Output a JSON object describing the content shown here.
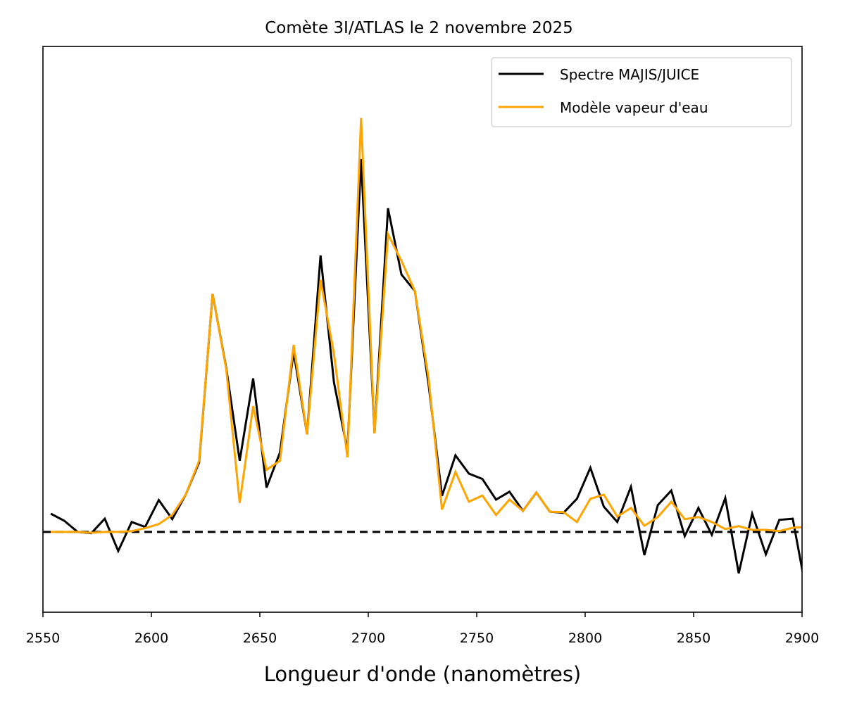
{
  "chart_data": {
    "type": "line",
    "title": "Comète 3I/ATLAS le 2 novembre 2025",
    "xlabel": "Longueur d'onde (nanomètres)",
    "ylabel": "",
    "xlim": [
      2550,
      2900
    ],
    "ylim": [
      -19.4,
      117.3
    ],
    "xticks": [
      2550,
      2600,
      2650,
      2700,
      2750,
      2800,
      2850,
      2900
    ],
    "y_ticks_shown": false,
    "grid": false,
    "legend_position": "top-right",
    "reference_line": {
      "y": 0,
      "style": "dashed",
      "color": "#000000"
    },
    "x": [
      2553.6,
      2559.8,
      2566.0,
      2572.3,
      2578.5,
      2584.7,
      2590.9,
      2597.1,
      2603.4,
      2609.6,
      2615.8,
      2622.0,
      2628.2,
      2634.5,
      2640.7,
      2646.9,
      2653.1,
      2659.3,
      2665.6,
      2671.8,
      2678.0,
      2684.2,
      2690.4,
      2696.7,
      2702.9,
      2709.1,
      2715.3,
      2721.5,
      2727.8,
      2734.0,
      2740.2,
      2746.4,
      2752.6,
      2758.9,
      2765.1,
      2771.3,
      2777.5,
      2783.7,
      2790.0,
      2796.2,
      2802.4,
      2808.6,
      2814.8,
      2821.1,
      2827.3,
      2833.5,
      2839.7,
      2845.9,
      2852.2,
      2858.4,
      2864.6,
      2870.8,
      2877.0,
      2883.3,
      2889.5,
      2895.7,
      2901.9
    ],
    "series": [
      {
        "name": "Spectre MAJIS/JUICE",
        "color": "#000000",
        "values": [
          4.4,
          2.7,
          0,
          -0.3,
          3.2,
          -4.6,
          2.4,
          1.2,
          7.7,
          3.1,
          9.0,
          16.8,
          57.5,
          39.6,
          17.2,
          37.1,
          10.7,
          19.2,
          43.5,
          23.6,
          66.8,
          36.1,
          19.7,
          90.1,
          23.8,
          78.2,
          62.2,
          58.2,
          35.7,
          8.7,
          18.5,
          14.1,
          12.8,
          7.8,
          9.7,
          5.1,
          9.5,
          4.9,
          4.6,
          8.0,
          15.5,
          6.1,
          2.4,
          10.9,
          -5.6,
          6.5,
          10.0,
          -1.0,
          5.8,
          -0.7,
          8.2,
          -10.0,
          4.4,
          -5.4,
          2.9,
          3.2,
          -14.3
        ]
      },
      {
        "name": "Modèle vapeur d'eau",
        "color": "#FFA500",
        "values": [
          0,
          0,
          0,
          -0.2,
          0,
          0,
          0.2,
          0.9,
          1.9,
          4.1,
          9.0,
          17.2,
          57.5,
          39.3,
          7.0,
          30.4,
          15.0,
          17.2,
          45.2,
          23.6,
          60.9,
          43.0,
          18.0,
          100,
          23.8,
          71.9,
          65.5,
          58.2,
          37.2,
          5.4,
          14.5,
          7.3,
          8.8,
          4.1,
          7.8,
          5.1,
          9.5,
          4.9,
          4.8,
          2.4,
          8.0,
          9.0,
          3.7,
          5.8,
          1.5,
          3.6,
          7.3,
          3.1,
          3.6,
          2.4,
          0.7,
          1.4,
          0.5,
          0.5,
          0.2,
          1.0,
          1.2
        ]
      }
    ]
  }
}
